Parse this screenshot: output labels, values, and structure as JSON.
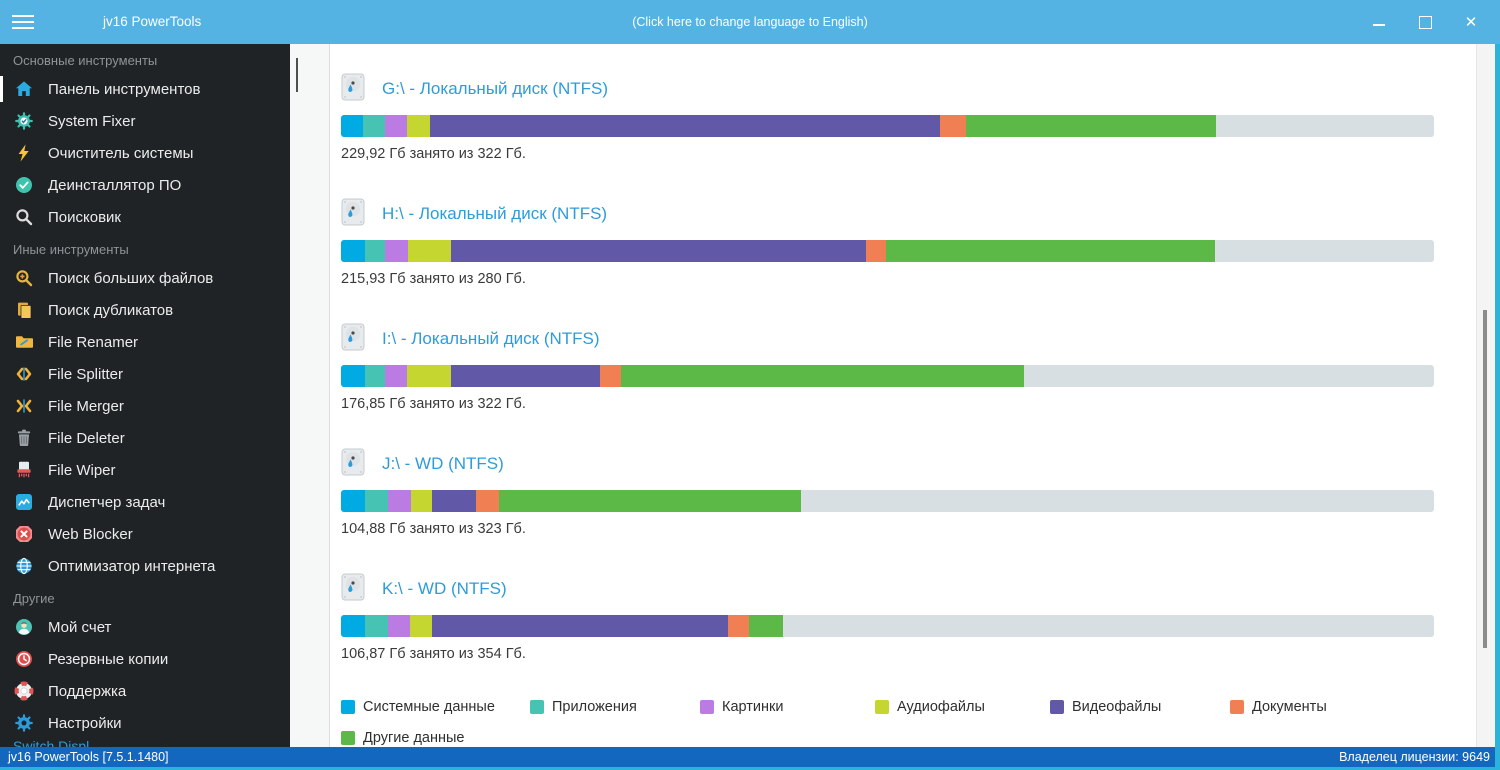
{
  "titlebar": {
    "title": "jv16 PowerTools",
    "language_link": "(Click here to change language to English)"
  },
  "sidebar": {
    "sections": [
      {
        "header": "Основные инструменты",
        "items": [
          {
            "label": "Панель инструментов",
            "icon": "home-icon",
            "selected": true
          },
          {
            "label": "System Fixer",
            "icon": "gear-check-icon"
          },
          {
            "label": "Очиститель системы",
            "icon": "lightning-icon"
          },
          {
            "label": "Деинсталлятор ПО",
            "icon": "check-circle-icon"
          },
          {
            "label": "Поисковик",
            "icon": "search-icon"
          }
        ]
      },
      {
        "header": "Иные инструменты",
        "items": [
          {
            "label": "Поиск больших файлов",
            "icon": "search-plus-icon"
          },
          {
            "label": "Поиск дубликатов",
            "icon": "copy-icon"
          },
          {
            "label": "File Renamer",
            "icon": "folder-rename-icon"
          },
          {
            "label": "File Splitter",
            "icon": "split-icon"
          },
          {
            "label": "File Merger",
            "icon": "merge-icon"
          },
          {
            "label": "File Deleter",
            "icon": "trash-icon"
          },
          {
            "label": "File Wiper",
            "icon": "shredder-icon"
          },
          {
            "label": "Диспетчер задач",
            "icon": "task-chart-icon"
          },
          {
            "label": "Web Blocker",
            "icon": "block-icon"
          },
          {
            "label": "Оптимизатор интернета",
            "icon": "globe-icon"
          }
        ]
      },
      {
        "header": "Другие",
        "items": [
          {
            "label": "Мой счет",
            "icon": "account-icon"
          },
          {
            "label": "Резервные копии",
            "icon": "backup-clock-icon"
          },
          {
            "label": "Поддержка",
            "icon": "lifebuoy-icon"
          },
          {
            "label": "Настройки",
            "icon": "settings-gear-icon"
          }
        ]
      }
    ],
    "clipped_item": "Switch Displ"
  },
  "disks": [
    {
      "title": "G:\\ - Локальный диск (NTFS)",
      "caption": "229,92 Гб занято из 322 Гб.",
      "used_gb": 229.92,
      "total_gb": 322,
      "segments": [
        2.0,
        2.0,
        2.0,
        2.1,
        46.7,
        2.4,
        22.9
      ]
    },
    {
      "title": "H:\\ - Локальный диск (NTFS)",
      "caption": "215,93 Гб занято из 280 Гб.",
      "used_gb": 215.93,
      "total_gb": 280,
      "segments": [
        2.2,
        1.8,
        2.1,
        4.0,
        37.9,
        1.9,
        30.1
      ]
    },
    {
      "title": "I:\\ - Локальный диск (NTFS)",
      "caption": "176,85 Гб занято из 322 Гб.",
      "used_gb": 176.85,
      "total_gb": 322,
      "segments": [
        2.2,
        1.8,
        2.0,
        4.1,
        13.6,
        1.9,
        36.9
      ]
    },
    {
      "title": "J:\\ - WD (NTFS)",
      "caption": "104,88 Гб занято из 323 Гб.",
      "used_gb": 104.88,
      "total_gb": 323,
      "segments": [
        2.2,
        2.1,
        2.1,
        1.9,
        4.1,
        2.1,
        27.6
      ]
    },
    {
      "title": "K:\\ - WD (NTFS)",
      "caption": "106,87 Гб занято из 354 Гб.",
      "used_gb": 106.87,
      "total_gb": 354,
      "segments": [
        2.2,
        2.1,
        2.0,
        2.0,
        27.1,
        1.9,
        3.1
      ]
    }
  ],
  "legend": [
    {
      "label": "Системные данные",
      "color": "#00ABE4"
    },
    {
      "label": "Приложения",
      "color": "#46C3B3"
    },
    {
      "label": "Картинки",
      "color": "#BA7BE3"
    },
    {
      "label": "Аудиофайлы",
      "color": "#C4D62F"
    },
    {
      "label": "Видеофайлы",
      "color": "#6158A8"
    },
    {
      "label": "Документы",
      "color": "#F07F54"
    },
    {
      "label": "Другие данные",
      "color": "#5CB847"
    }
  ],
  "colors": {
    "free_space": "#D8DFE3",
    "titlebar": "#54B3E3",
    "statusbar": "#1467BE",
    "window_border": "#2BB3DC",
    "disk_title": "#2D9CDB"
  },
  "statusbar": {
    "left": "jv16 PowerTools [7.5.1.1480]",
    "right": "Владелец лицензии: 9649"
  }
}
